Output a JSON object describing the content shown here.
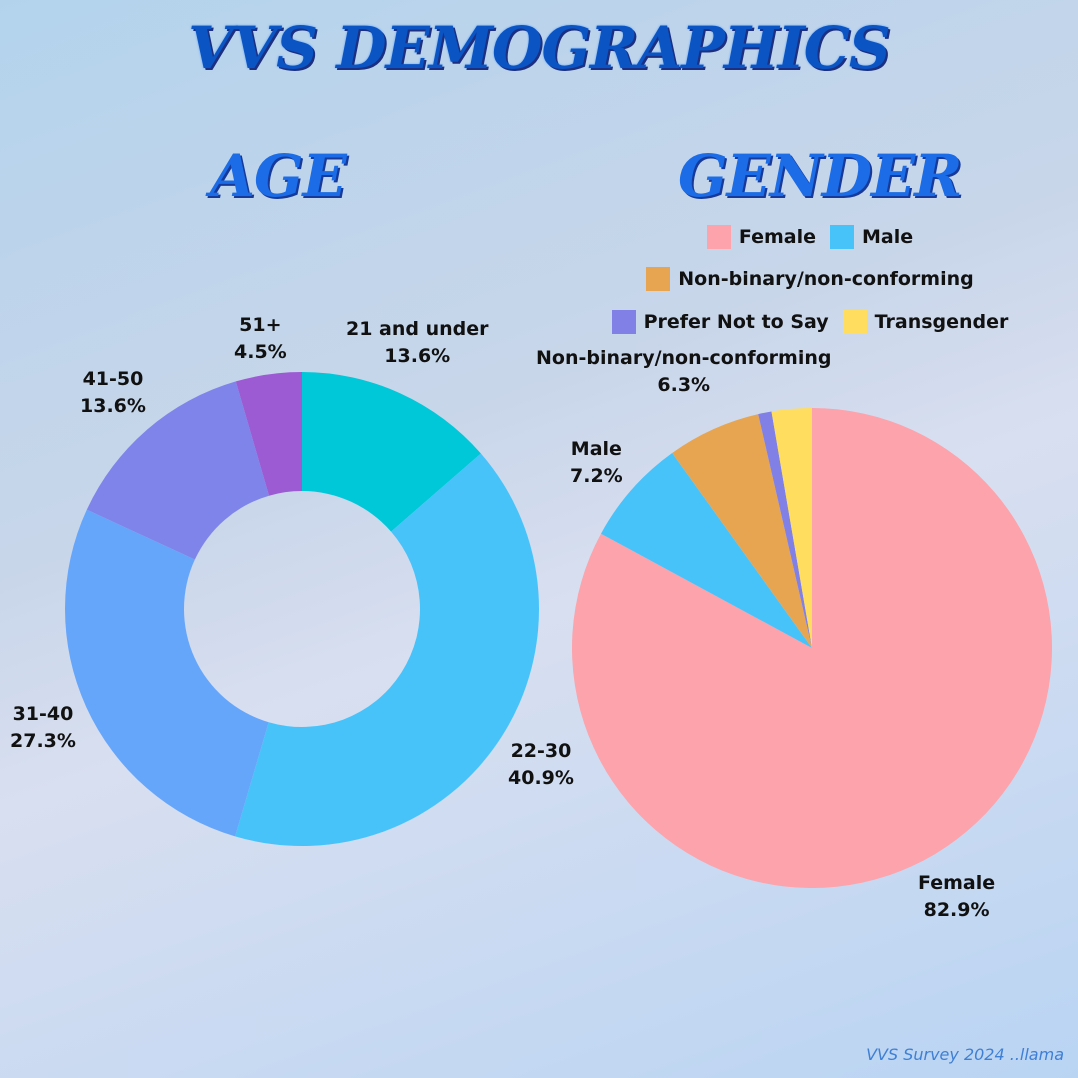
{
  "title": "VVS DEMOGRAPHICS",
  "footer": "VVS Survey 2024 ..llama",
  "chart_data": [
    {
      "type": "donut",
      "title": "AGE",
      "slices": [
        {
          "label": "21 and under",
          "pct_label": "13.6%",
          "value": 13.6,
          "color": "#00c8d9"
        },
        {
          "label": "22-30",
          "pct_label": "40.9%",
          "value": 40.9,
          "color": "#47c3fa"
        },
        {
          "label": "31-40",
          "pct_label": "27.3%",
          "value": 27.3,
          "color": "#66a6fa"
        },
        {
          "label": "41-50",
          "pct_label": "13.6%",
          "value": 13.6,
          "color": "#7e84ea"
        },
        {
          "label": "51+",
          "pct_label": "4.5%",
          "value": 4.5,
          "color": "#9c5bd3"
        }
      ]
    },
    {
      "type": "pie",
      "title": "GENDER",
      "legend": {
        "rows": [
          [
            {
              "label": "Female",
              "color": "#fca3ac"
            },
            {
              "label": "Male",
              "color": "#47c3fa"
            }
          ],
          [
            {
              "label": "Non-binary/non-conforming",
              "color": "#e7a552"
            }
          ],
          [
            {
              "label": "Prefer Not to Say",
              "color": "#8080e6"
            },
            {
              "label": "Transgender",
              "color": "#ffdd5e"
            }
          ]
        ]
      },
      "slices": [
        {
          "label": "Female",
          "pct_label": "82.9%",
          "value": 82.9,
          "color": "#fca3ac"
        },
        {
          "label": "Male",
          "pct_label": "7.2%",
          "value": 7.2,
          "color": "#47c3fa"
        },
        {
          "label": "Non-binary/non-conforming",
          "pct_label": "6.3%",
          "value": 6.3,
          "color": "#e7a552"
        },
        {
          "label": "Prefer Not to Say",
          "value": 0.9,
          "color": "#8080e6"
        },
        {
          "label": "Transgender",
          "value": 2.7,
          "color": "#ffdd5e"
        }
      ]
    }
  ]
}
